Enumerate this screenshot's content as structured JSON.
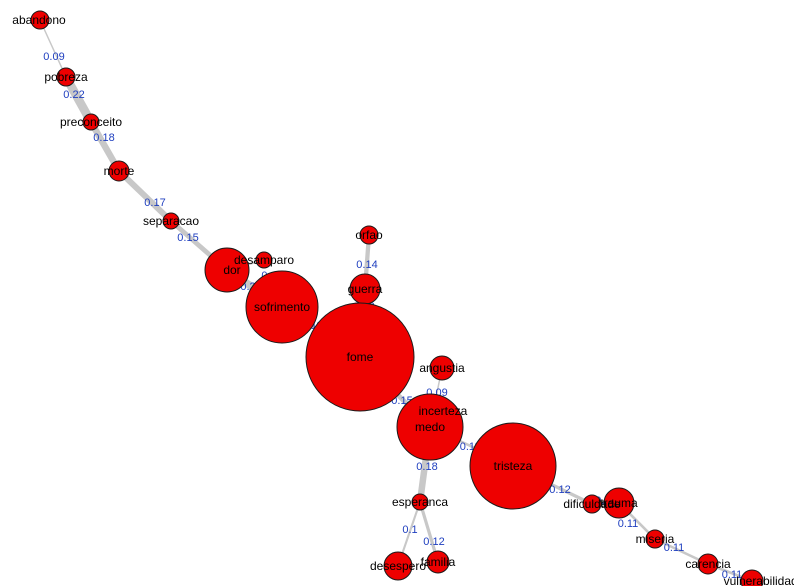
{
  "colors": {
    "node_fill": "#ee0000",
    "node_stroke": "#1a1a1a",
    "edge": "#c8c8c8",
    "edge_label": "#1f3fbf",
    "node_label": "#000000",
    "background": "#ffffff"
  },
  "graph": {
    "nodes": [
      {
        "id": "abandono",
        "label": "abandono"
      },
      {
        "id": "pobreza",
        "label": "pobreza"
      },
      {
        "id": "preconceito",
        "label": "preconceito"
      },
      {
        "id": "morte",
        "label": "morte"
      },
      {
        "id": "separacao",
        "label": "separacao"
      },
      {
        "id": "desamparo",
        "label": "desamparo"
      },
      {
        "id": "dor",
        "label": "dor"
      },
      {
        "id": "sofrimento",
        "label": "sofrimento"
      },
      {
        "id": "orfao",
        "label": "orfao"
      },
      {
        "id": "guerra",
        "label": "guerra"
      },
      {
        "id": "fome",
        "label": "fome"
      },
      {
        "id": "angustia",
        "label": "angustia"
      },
      {
        "id": "incerteza",
        "label": "incerteza"
      },
      {
        "id": "medo",
        "label": "medo"
      },
      {
        "id": "tristeza",
        "label": "tristeza"
      },
      {
        "id": "esperanca",
        "label": "esperanca"
      },
      {
        "id": "desespero",
        "label": "desespero"
      },
      {
        "id": "familia",
        "label": "familia"
      },
      {
        "id": "dificuldade",
        "label": "dificuldade"
      },
      {
        "id": "trauma",
        "label": "trauma"
      },
      {
        "id": "miseria",
        "label": "miseria"
      },
      {
        "id": "carencia",
        "label": "carencia"
      },
      {
        "id": "vulnerabilidade",
        "label": "vulnerabilidade"
      }
    ],
    "edges": [
      {
        "from": "abandono",
        "to": "pobreza",
        "weight": 0.09
      },
      {
        "from": "pobreza",
        "to": "preconceito",
        "weight": 0.22
      },
      {
        "from": "preconceito",
        "to": "morte",
        "weight": 0.18
      },
      {
        "from": "morte",
        "to": "separacao",
        "weight": 0.17
      },
      {
        "from": "separacao",
        "to": "dor",
        "weight": 0.15
      },
      {
        "from": "desamparo",
        "to": "dor",
        "weight": 0.1
      },
      {
        "from": "dor",
        "to": "sofrimento",
        "weight": 0.2
      },
      {
        "from": "sofrimento",
        "to": "fome",
        "weight": 0.11
      },
      {
        "from": "orfao",
        "to": "guerra",
        "weight": 0.14
      },
      {
        "from": "guerra",
        "to": "fome",
        "weight": 0.13
      },
      {
        "from": "angustia",
        "to": "medo",
        "weight": 0.09
      },
      {
        "from": "fome",
        "to": "medo",
        "weight": 0.15
      },
      {
        "from": "incerteza",
        "to": "medo",
        "weight": 0.09
      },
      {
        "from": "medo",
        "to": "tristeza",
        "weight": 0.11
      },
      {
        "from": "medo",
        "to": "esperanca",
        "weight": 0.18
      },
      {
        "from": "esperanca",
        "to": "desespero",
        "weight": 0.1
      },
      {
        "from": "esperanca",
        "to": "familia",
        "weight": 0.12
      },
      {
        "from": "tristeza",
        "to": "dificuldade",
        "weight": 0.12
      },
      {
        "from": "dificuldade",
        "to": "trauma",
        "weight": 0.12
      },
      {
        "from": "trauma",
        "to": "miseria",
        "weight": 0.11
      },
      {
        "from": "miseria",
        "to": "carencia",
        "weight": 0.11
      },
      {
        "from": "carencia",
        "to": "vulnerabilidade",
        "weight": 0.11
      }
    ]
  }
}
